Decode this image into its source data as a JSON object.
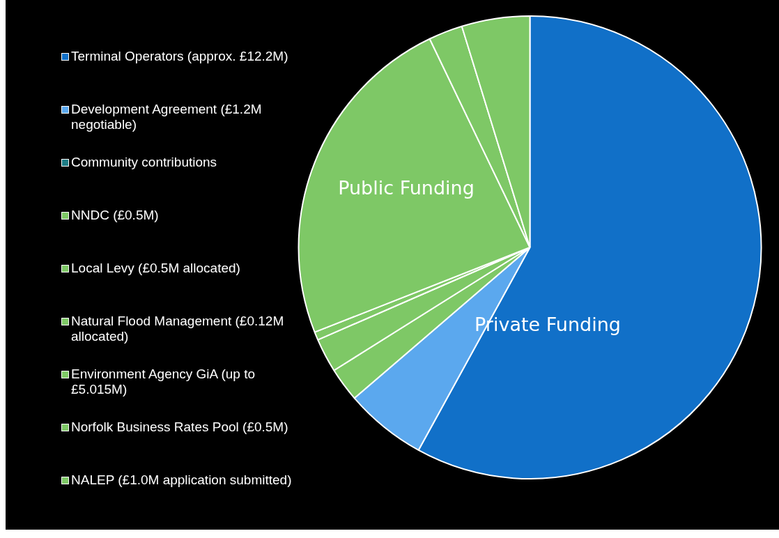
{
  "chart_data": {
    "type": "pie",
    "categories": [
      "Terminal Operators (approx. £12.2M)",
      "Development Agreement (£1.2M negotiable)",
      "Community contributions",
      "NNDC (£0.5M)",
      "Local Levy (£0.5M allocated)",
      "Natural Flood Management (£0.12M allocated)",
      "Environment Agency GiA (up to £5.015M)",
      "Norfolk Business Rates Pool (£0.5M)",
      "NALEP (£1.0M application submitted)"
    ],
    "values": [
      12.2,
      1.2,
      0,
      0.5,
      0.5,
      0.12,
      5.015,
      0.5,
      1.0
    ],
    "colors": [
      "#1170c8",
      "#5ba8ee",
      "#1e7d86",
      "#7ec866",
      "#7ec866",
      "#7ec866",
      "#7ec866",
      "#7ec866",
      "#7ec866"
    ],
    "legend": "left",
    "annotations": [
      "Public Funding",
      "Private Funding"
    ]
  }
}
